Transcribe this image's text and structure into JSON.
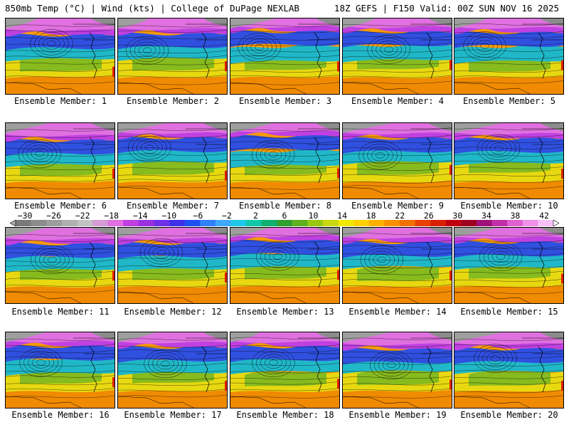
{
  "header": {
    "left_title": "850mb Temp (°C) | Wind (kts) | College of DuPage NEXLAB",
    "right_title": "18Z GEFS | F150 Valid: 00Z SUN NOV 16 2025"
  },
  "panels": [
    {
      "label": "Ensemble Member: 1"
    },
    {
      "label": "Ensemble Member: 2"
    },
    {
      "label": "Ensemble Member: 3"
    },
    {
      "label": "Ensemble Member: 4"
    },
    {
      "label": "Ensemble Member: 5"
    },
    {
      "label": "Ensemble Member: 6"
    },
    {
      "label": "Ensemble Member: 7"
    },
    {
      "label": "Ensemble Member: 8"
    },
    {
      "label": "Ensemble Member: 9"
    },
    {
      "label": "Ensemble Member: 10"
    },
    {
      "label": "Ensemble Member: 11"
    },
    {
      "label": "Ensemble Member: 12"
    },
    {
      "label": "Ensemble Member: 13"
    },
    {
      "label": "Ensemble Member: 14"
    },
    {
      "label": "Ensemble Member: 15"
    },
    {
      "label": "Ensemble Member: 16"
    },
    {
      "label": "Ensemble Member: 17"
    },
    {
      "label": "Ensemble Member: 18"
    },
    {
      "label": "Ensemble Member: 19"
    },
    {
      "label": "Ensemble Member: 20"
    }
  ],
  "colorbar": {
    "tick_labels": [
      "−30",
      "−26",
      "−22",
      "−18",
      "−14",
      "−10",
      "−6",
      "−2",
      "2",
      "6",
      "10",
      "14",
      "18",
      "22",
      "26",
      "30",
      "34",
      "38",
      "42"
    ],
    "colors": [
      "#7a7a7a",
      "#8c8c8c",
      "#9e9e9e",
      "#b0b0b0",
      "#c2c2c2",
      "#d49bd4",
      "#e070e0",
      "#c040e0",
      "#9a30e0",
      "#7030e8",
      "#4030e8",
      "#2050f0",
      "#3080f8",
      "#40a8ff",
      "#20c8e8",
      "#10c8a8",
      "#10b070",
      "#30a030",
      "#60b020",
      "#98c810",
      "#c8d810",
      "#f0e800",
      "#ffd000",
      "#ffb000",
      "#f89000",
      "#f07000",
      "#e84000",
      "#d82000",
      "#c00010",
      "#a00020",
      "#a0107a",
      "#c030a8",
      "#e060d0",
      "#f090e8",
      "#f8c0f8"
    ]
  }
}
